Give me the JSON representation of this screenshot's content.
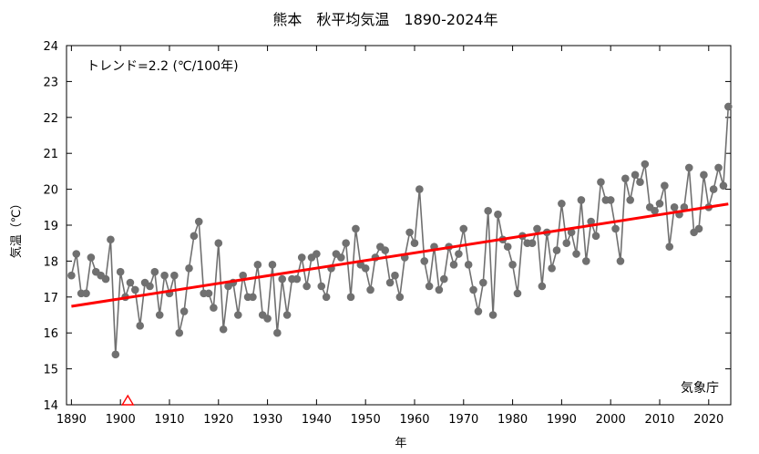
{
  "chart_data": {
    "type": "line",
    "title": "熊本　秋平均気温　1890-2024年",
    "xlabel": "年",
    "ylabel": "気温（℃）",
    "trend_label": "トレンド=2.2 (℃/100年)",
    "source": "気象庁",
    "xlim": [
      1889,
      2024.5
    ],
    "ylim": [
      14,
      24
    ],
    "x_ticks": [
      1890,
      1900,
      1910,
      1920,
      1930,
      1940,
      1950,
      1960,
      1970,
      1980,
      1990,
      2000,
      2010,
      2020
    ],
    "y_ticks": [
      14,
      15,
      16,
      17,
      18,
      19,
      20,
      21,
      22,
      23,
      24
    ],
    "grid": false,
    "series": [
      {
        "color": "#707070",
        "x": [
          1890,
          1891,
          1892,
          1893,
          1894,
          1895,
          1896,
          1897,
          1898,
          1899,
          1900,
          1901,
          1902,
          1903,
          1904,
          1905,
          1906,
          1907,
          1908,
          1909,
          1910,
          1911,
          1912,
          1913,
          1914,
          1915,
          1916,
          1917,
          1918,
          1919,
          1920,
          1921,
          1922,
          1923,
          1924,
          1925,
          1926,
          1927,
          1928,
          1929,
          1930,
          1931,
          1932,
          1933,
          1934,
          1935,
          1936,
          1937,
          1938,
          1939,
          1940,
          1941,
          1942,
          1943,
          1944,
          1945,
          1946,
          1947,
          1948,
          1949,
          1950,
          1951,
          1952,
          1953,
          1954,
          1955,
          1956,
          1957,
          1958,
          1959,
          1960,
          1961,
          1962,
          1963,
          1964,
          1965,
          1966,
          1967,
          1968,
          1969,
          1970,
          1971,
          1972,
          1973,
          1974,
          1975,
          1976,
          1977,
          1978,
          1979,
          1980,
          1981,
          1982,
          1983,
          1984,
          1985,
          1986,
          1987,
          1988,
          1989,
          1990,
          1991,
          1992,
          1993,
          1994,
          1995,
          1996,
          1997,
          1998,
          1999,
          2000,
          2001,
          2002,
          2003,
          2004,
          2005,
          2006,
          2007,
          2008,
          2009,
          2010,
          2011,
          2012,
          2013,
          2014,
          2015,
          2016,
          2017,
          2018,
          2019,
          2020,
          2021,
          2022,
          2023,
          2024
        ],
        "y": [
          17.6,
          18.2,
          17.1,
          17.1,
          18.1,
          17.7,
          17.6,
          17.5,
          18.6,
          15.4,
          17.7,
          17.0,
          17.4,
          17.2,
          16.2,
          17.4,
          17.3,
          17.7,
          16.5,
          17.6,
          17.1,
          17.6,
          16.0,
          16.6,
          17.8,
          18.7,
          19.1,
          17.1,
          17.1,
          16.7,
          18.5,
          16.1,
          17.3,
          17.4,
          16.5,
          17.6,
          17.0,
          17.0,
          17.9,
          16.5,
          16.4,
          17.9,
          16.0,
          17.5,
          16.5,
          17.5,
          17.5,
          18.1,
          17.3,
          18.1,
          18.2,
          17.3,
          17.0,
          17.8,
          18.2,
          18.1,
          18.5,
          17.0,
          18.9,
          17.9,
          17.8,
          17.2,
          18.1,
          18.4,
          18.3,
          17.4,
          17.6,
          17.0,
          18.1,
          18.8,
          18.5,
          20.0,
          18.0,
          17.3,
          18.4,
          17.2,
          17.5,
          18.4,
          17.9,
          18.2,
          18.9,
          17.9,
          17.2,
          16.6,
          17.4,
          19.4,
          16.5,
          19.3,
          18.6,
          18.4,
          17.9,
          17.1,
          18.7,
          18.5,
          18.5,
          18.9,
          17.3,
          18.8,
          17.8,
          18.3,
          19.6,
          18.5,
          18.8,
          18.2,
          19.7,
          18.0,
          19.1,
          18.7,
          20.2,
          19.7,
          19.7,
          18.9,
          18.0,
          20.3,
          19.7,
          20.4,
          20.2,
          20.7,
          19.5,
          19.4,
          19.6,
          20.1,
          18.4,
          19.5,
          19.3,
          19.5,
          20.6,
          18.8,
          18.9,
          20.4,
          19.5,
          20.0,
          20.6,
          20.1,
          22.3
        ]
      }
    ],
    "trend": {
      "color": "#ff0000",
      "x": [
        1890,
        2024
      ],
      "y": [
        16.74,
        19.59
      ]
    },
    "markers": [
      {
        "shape": "triangle",
        "x": 1901.5,
        "y": 14,
        "color": "#ff0000"
      }
    ]
  }
}
